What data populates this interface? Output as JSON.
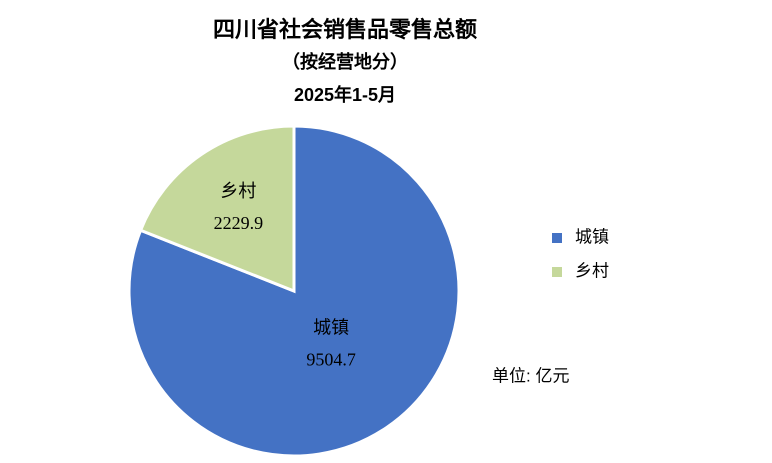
{
  "chart_data": {
    "type": "pie",
    "title": "四川省社会销售品零售总额",
    "subtitle": "（按经营地分）",
    "period": "2025年1-5月",
    "categories": [
      "城镇",
      "乡村"
    ],
    "values": [
      9504.7,
      2229.9
    ],
    "colors": [
      "#4472c4",
      "#c5d89b"
    ],
    "legend": "right",
    "unit_note": "单位: 亿元"
  }
}
